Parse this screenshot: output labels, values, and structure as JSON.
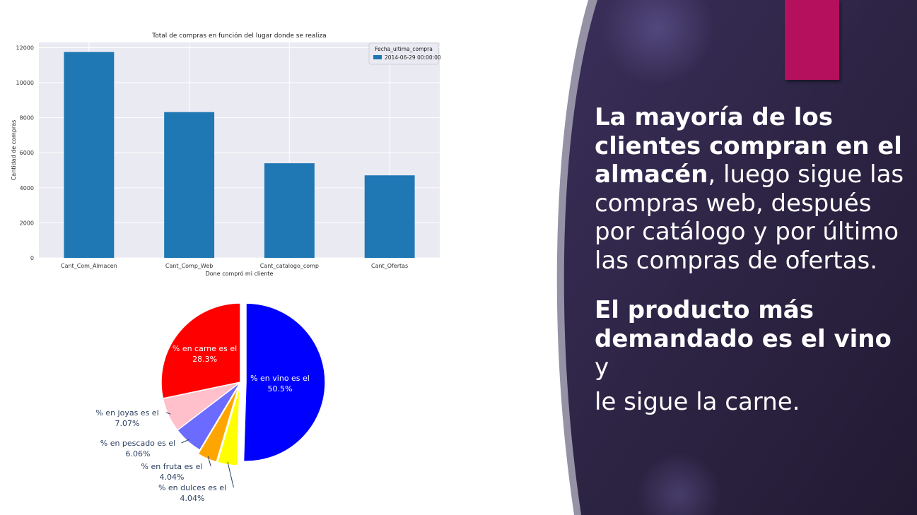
{
  "colors": {
    "bar_fill": "#1f77b4",
    "plot_bg": "#eaeaf2",
    "accent": "#b5105e",
    "panel_bg": "#2e2545"
  },
  "chart_data": [
    {
      "type": "bar",
      "title": "Total de compras en función del lugar donde se realiza",
      "xlabel": "Done compró mi cliente",
      "ylabel": "Cantidad de compras",
      "categories": [
        "Cant_Com_Almacen",
        "Cant_Comp_Web",
        "Cant_catalogo_comp",
        "Cant_Ofertas"
      ],
      "series": [
        {
          "name": "2014-06-29 00:00:00",
          "values": [
            11750,
            8320,
            5400,
            4710
          ]
        }
      ],
      "legend_title": "Fecha_ultima_compra",
      "legend_position": "top-right",
      "ylim": [
        0,
        12300
      ],
      "yticks": [
        0,
        2000,
        4000,
        6000,
        8000,
        10000,
        12000
      ],
      "grid": true
    },
    {
      "type": "pie",
      "slices": [
        {
          "label": "% en vino es el",
          "value": 50.5,
          "value_text": "50.5%",
          "color": "#0000ff"
        },
        {
          "label": "% en dulces es el",
          "value": 4.04,
          "value_text": "4.04%",
          "color": "#ffff00"
        },
        {
          "label": "% en fruta es el",
          "value": 4.04,
          "value_text": "4.04%",
          "color": "#ffa500"
        },
        {
          "label": "% en pescado es el",
          "value": 6.06,
          "value_text": "6.06%",
          "color": "#6b6bff"
        },
        {
          "label": "% en joyas es el",
          "value": 7.07,
          "value_text": "7.07%",
          "color": "#ffc0cb"
        },
        {
          "label": "% en carne es el",
          "value": 28.3,
          "value_text": "28.3%",
          "color": "#ff0000"
        }
      ]
    }
  ],
  "text": {
    "p1_bold": "La mayoría de los clientes compran en el almacén",
    "p1_rest": ", luego sigue las compras web, después por catálogo y por último las compras de ofertas.",
    "p2_bold": "El producto más demandado es el vino",
    "p2_mid": " y",
    "p2_tail": "le sigue la carne."
  }
}
